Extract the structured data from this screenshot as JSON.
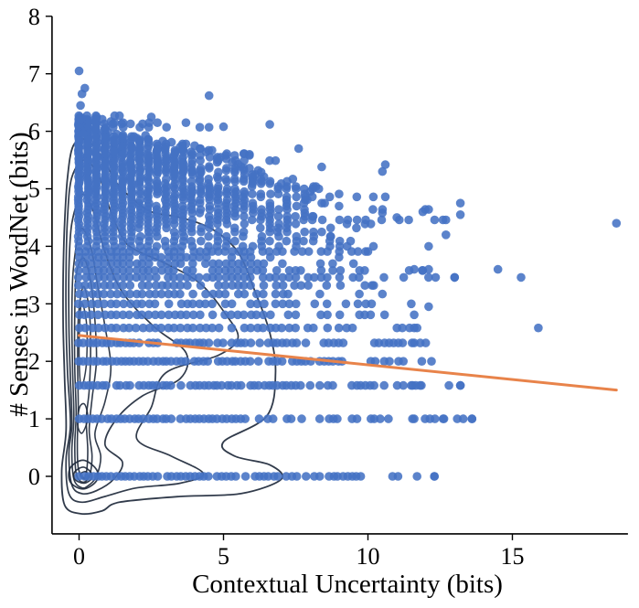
{
  "chart_data": {
    "type": "scatter",
    "title": "",
    "xlabel": "Contextual Uncertainty (bits)",
    "ylabel": "# Senses in WordNet (bits)",
    "xlim": [
      -1,
      19
    ],
    "ylim": [
      -1,
      8
    ],
    "xticks": [
      0,
      5,
      10,
      15
    ],
    "yticks": [
      0,
      1,
      2,
      3,
      4,
      5,
      6,
      7,
      8
    ],
    "grid": false,
    "colors": {
      "points": "#4472c4",
      "regression": "#e8834a",
      "density": "#1f2a3c"
    },
    "regression": {
      "x": [
        0,
        18.6
      ],
      "y": [
        2.45,
        1.5
      ]
    },
    "sense_levels": [
      0,
      1,
      1.58,
      2,
      2.32,
      2.58,
      2.81,
      3,
      3.17,
      3.32,
      3.46,
      3.58,
      3.7,
      3.81,
      3.91,
      4,
      4.09,
      4.17,
      4.25,
      4.32,
      4.39,
      4.46,
      4.52,
      4.58,
      4.64,
      4.7,
      4.75,
      4.81,
      4.86,
      4.91,
      4.95,
      5,
      5.04,
      5.09,
      5.13,
      5.17,
      5.21,
      5.25,
      5.29,
      5.32,
      5.36,
      5.39,
      5.43,
      5.46,
      5.49,
      5.52,
      5.55,
      5.58,
      5.61,
      5.64,
      5.67,
      5.7,
      5.73,
      5.75,
      5.78,
      5.81,
      5.83,
      5.86,
      5.88,
      5.91,
      5.93,
      5.95,
      5.98,
      6,
      6.02,
      6.04,
      6.07,
      6.09,
      6.11,
      6.13,
      6.15,
      6.17,
      6.19,
      6.21,
      6.23,
      6.25,
      6.27
    ],
    "level_max_x": [
      12.3,
      13.6,
      13.2,
      12.2,
      12.0,
      11.6,
      11.6,
      11.5,
      10.5,
      10.2,
      13.0,
      11.9,
      9.5,
      9.0,
      10.0,
      12.1,
      9.4,
      8.7,
      8.4,
      9.6,
      10.1,
      12.7,
      8.1,
      10.5,
      12.1,
      9.0,
      8.5,
      7.9,
      10.6,
      9.0,
      8.0,
      8.3,
      8.2,
      7.0,
      7.2,
      7.4,
      6.4,
      6.1,
      6.3,
      6.2,
      5.9,
      5.6,
      5.5,
      5.3,
      6.8,
      5.1,
      4.9,
      5.9,
      5.7,
      4.4,
      4.6,
      4.2,
      3.5,
      4.0,
      3.7,
      3.2,
      2.9,
      2.4,
      2.0,
      1.9,
      2.3,
      1.3,
      1.0,
      0.6,
      0.4,
      0.9,
      4.5,
      0.2,
      0.3,
      2.2,
      3.7,
      1.1,
      0.5,
      0.8,
      0.1,
      0.6,
      1.4
    ],
    "outliers": [
      {
        "x": 0.0,
        "y": 7.05
      },
      {
        "x": 0.1,
        "y": 6.65
      },
      {
        "x": 0.2,
        "y": 6.75
      },
      {
        "x": 0.05,
        "y": 6.45
      },
      {
        "x": 0.0,
        "y": 6.2
      },
      {
        "x": 0.15,
        "y": 5.95
      },
      {
        "x": 4.5,
        "y": 6.62
      },
      {
        "x": 2.5,
        "y": 6.25
      },
      {
        "x": 6.6,
        "y": 6.12
      },
      {
        "x": 5.0,
        "y": 6.08
      },
      {
        "x": 1.2,
        "y": 5.65
      },
      {
        "x": 7.6,
        "y": 5.7
      },
      {
        "x": 2.1,
        "y": 5.85
      },
      {
        "x": 3.6,
        "y": 5.68
      },
      {
        "x": 5.9,
        "y": 5.6
      },
      {
        "x": 10.6,
        "y": 5.42
      },
      {
        "x": 10.5,
        "y": 5.3
      },
      {
        "x": 8.4,
        "y": 5.38
      },
      {
        "x": 11.0,
        "y": 4.5
      },
      {
        "x": 11.9,
        "y": 4.6
      },
      {
        "x": 13.2,
        "y": 4.75
      },
      {
        "x": 13.2,
        "y": 4.55
      },
      {
        "x": 18.6,
        "y": 4.4
      },
      {
        "x": 12.7,
        "y": 4.2
      },
      {
        "x": 14.5,
        "y": 3.6
      },
      {
        "x": 15.3,
        "y": 3.46
      },
      {
        "x": 12.1,
        "y": 3.6
      },
      {
        "x": 11.6,
        "y": 3.6
      },
      {
        "x": 15.9,
        "y": 2.58
      },
      {
        "x": 12.1,
        "y": 2.95
      },
      {
        "x": 13.2,
        "y": 1.58
      },
      {
        "x": 11.6,
        "y": 1.0
      },
      {
        "x": 12.6,
        "y": 1.0
      },
      {
        "x": 13.6,
        "y": 1.0
      },
      {
        "x": 11.7,
        "y": 2.58
      },
      {
        "x": 11.6,
        "y": 2.32
      },
      {
        "x": 11.2,
        "y": 2.32
      },
      {
        "x": 11.5,
        "y": 1.58
      },
      {
        "x": 11.8,
        "y": 1.58
      },
      {
        "x": 11.7,
        "y": 0.0
      },
      {
        "x": 12.3,
        "y": 0.0
      }
    ]
  }
}
